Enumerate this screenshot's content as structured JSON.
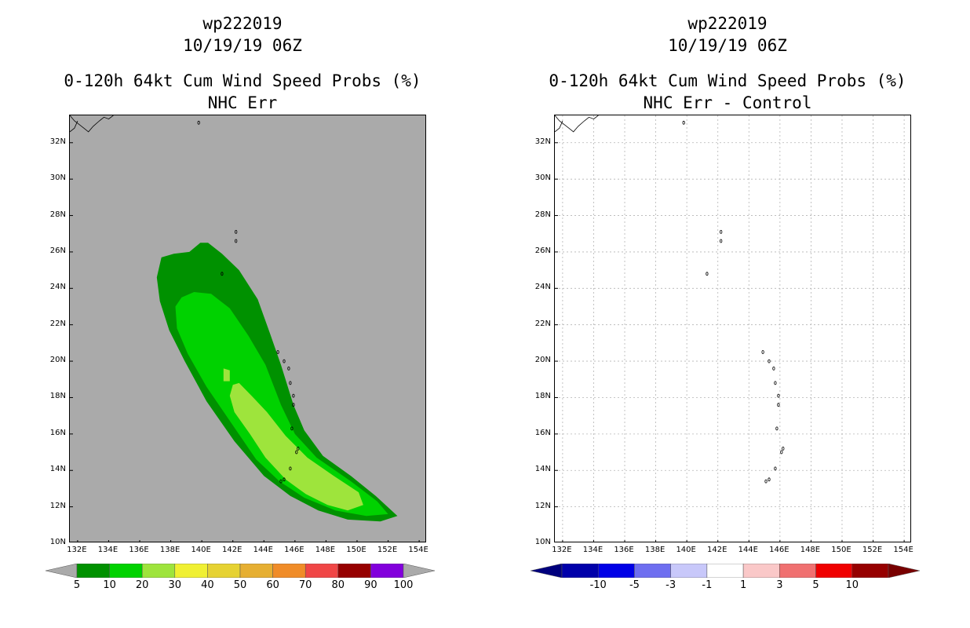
{
  "chart_data": [
    {
      "type": "heatmap",
      "title_lines": [
        "wp222019",
        "10/19/19 06Z",
        "0-120h 64kt Cum Wind Speed Probs (%)",
        "NHC Err"
      ],
      "xlim": [
        131.5,
        154.5
      ],
      "ylim": [
        10,
        33.5
      ],
      "x_ticks": [
        "132E",
        "134E",
        "136E",
        "138E",
        "140E",
        "142E",
        "144E",
        "146E",
        "148E",
        "150E",
        "152E",
        "154E"
      ],
      "y_ticks": [
        "10N",
        "12N",
        "14N",
        "16N",
        "18N",
        "20N",
        "22N",
        "24N",
        "26N",
        "28N",
        "30N",
        "32N"
      ],
      "background_color": "#aaaaaa",
      "colorbar": {
        "labels": [
          "5",
          "10",
          "20",
          "30",
          "40",
          "50",
          "60",
          "70",
          "80",
          "90",
          "100"
        ],
        "colors": [
          "#009100",
          "#00d200",
          "#9ee43c",
          "#f0f032",
          "#e6d232",
          "#e6af32",
          "#f08c28",
          "#f04646",
          "#960000",
          "#8200dc"
        ],
        "under_color": "#aaaaaa",
        "over_color": "#aaaaaa"
      },
      "contours": [
        {
          "level": "5-10",
          "color": "#009100",
          "polygon": [
            [
              139.9,
              26.5
            ],
            [
              140.4,
              26.5
            ],
            [
              141.3,
              25.9
            ],
            [
              142.4,
              25.0
            ],
            [
              143.6,
              23.4
            ],
            [
              144.4,
              21.5
            ],
            [
              145.1,
              19.8
            ],
            [
              145.9,
              17.6
            ],
            [
              146.6,
              16.2
            ],
            [
              147.8,
              14.8
            ],
            [
              149.6,
              13.7
            ],
            [
              151.2,
              12.6
            ],
            [
              152.6,
              11.5
            ],
            [
              151.5,
              11.2
            ],
            [
              149.4,
              11.3
            ],
            [
              147.5,
              11.8
            ],
            [
              145.7,
              12.6
            ],
            [
              144.0,
              13.7
            ],
            [
              142.1,
              15.6
            ],
            [
              140.3,
              17.8
            ],
            [
              138.9,
              20.0
            ],
            [
              137.9,
              21.7
            ],
            [
              137.3,
              23.3
            ],
            [
              137.1,
              24.6
            ],
            [
              137.4,
              25.7
            ],
            [
              138.2,
              25.9
            ],
            [
              139.2,
              26.0
            ]
          ]
        },
        {
          "level": "10-20",
          "color": "#00d200",
          "polygon": [
            [
              139.5,
              23.8
            ],
            [
              140.6,
              23.7
            ],
            [
              141.8,
              22.9
            ],
            [
              143.0,
              21.4
            ],
            [
              144.1,
              19.8
            ],
            [
              145.1,
              17.6
            ],
            [
              146.0,
              16.0
            ],
            [
              147.4,
              14.7
            ],
            [
              149.6,
              13.4
            ],
            [
              151.3,
              12.3
            ],
            [
              152.0,
              11.6
            ],
            [
              150.6,
              11.5
            ],
            [
              148.6,
              11.8
            ],
            [
              146.6,
              12.5
            ],
            [
              145.0,
              13.4
            ],
            [
              143.5,
              14.6
            ],
            [
              141.9,
              16.6
            ],
            [
              140.3,
              18.6
            ],
            [
              139.1,
              20.4
            ],
            [
              138.4,
              21.8
            ],
            [
              138.3,
              23.0
            ],
            [
              138.7,
              23.5
            ]
          ]
        },
        {
          "level": "20-30",
          "color": "#9ee43c",
          "polygon": [
            [
              142.4,
              18.8
            ],
            [
              143.2,
              18.1
            ],
            [
              144.2,
              17.2
            ],
            [
              145.4,
              15.9
            ],
            [
              146.8,
              14.7
            ],
            [
              148.5,
              13.7
            ],
            [
              150.1,
              12.8
            ],
            [
              150.4,
              12.1
            ],
            [
              149.4,
              11.8
            ],
            [
              148.1,
              12.1
            ],
            [
              146.7,
              12.7
            ],
            [
              145.4,
              13.5
            ],
            [
              144.1,
              14.7
            ],
            [
              143.1,
              16.0
            ],
            [
              142.1,
              17.2
            ],
            [
              141.8,
              18.1
            ],
            [
              142.0,
              18.7
            ]
          ]
        },
        {
          "level": "20-30",
          "color": "#9ee43c",
          "polygon": [
            [
              141.4,
              19.6
            ],
            [
              141.8,
              19.5
            ],
            [
              141.8,
              18.9
            ],
            [
              141.4,
              18.9
            ]
          ]
        }
      ]
    },
    {
      "type": "heatmap",
      "title_lines": [
        "wp222019",
        "10/19/19 06Z",
        "0-120h 64kt Cum Wind Speed Probs (%)",
        "NHC Err - Control"
      ],
      "xlim": [
        131.5,
        154.5
      ],
      "ylim": [
        10,
        33.5
      ],
      "x_ticks": [
        "132E",
        "134E",
        "136E",
        "138E",
        "140E",
        "142E",
        "144E",
        "146E",
        "148E",
        "150E",
        "152E",
        "154E"
      ],
      "y_ticks": [
        "10N",
        "12N",
        "14N",
        "16N",
        "18N",
        "20N",
        "22N",
        "24N",
        "26N",
        "28N",
        "30N",
        "32N"
      ],
      "background_color": "#ffffff",
      "grid": true,
      "colorbar": {
        "labels": [
          "-10",
          "-5",
          "-3",
          "-1",
          "1",
          "3",
          "5",
          "10"
        ],
        "colors": [
          "#0000aa",
          "#0000e6",
          "#6e6ef0",
          "#c8c8fa",
          "#ffffff",
          "#fac8c8",
          "#f07070",
          "#f00000",
          "#960000"
        ],
        "under_color": "#00007d",
        "over_color": "#780000"
      },
      "contours": []
    }
  ]
}
